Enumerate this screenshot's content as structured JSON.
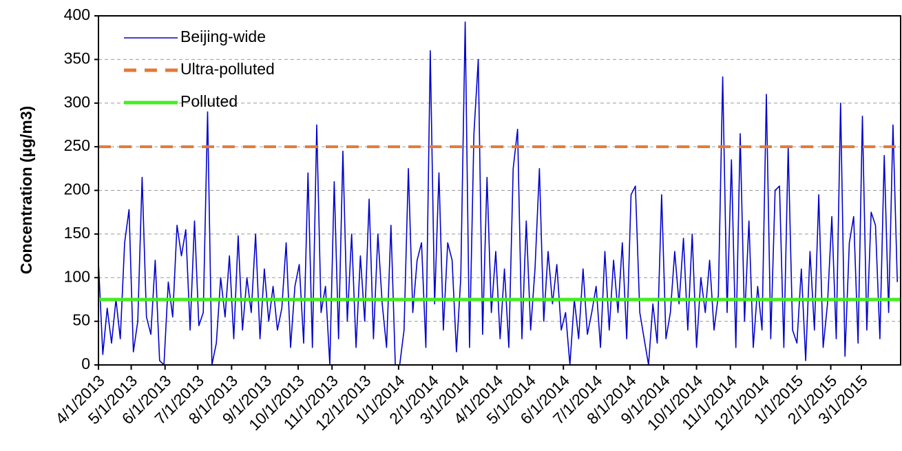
{
  "chart_data": {
    "type": "line",
    "y_label": "Concentration (µg/m3)",
    "x": [
      "4/1/2013",
      "4/5/2013",
      "4/9/2013",
      "4/13/2013",
      "4/17/2013",
      "4/21/2013",
      "4/25/2013",
      "4/29/2013",
      "5/3/2013",
      "5/7/2013",
      "5/11/2013",
      "5/15/2013",
      "5/19/2013",
      "5/23/2013",
      "5/27/2013",
      "5/31/2013",
      "6/4/2013",
      "6/8/2013",
      "6/12/2013",
      "6/16/2013",
      "6/20/2013",
      "6/24/2013",
      "6/28/2013",
      "7/2/2013",
      "7/6/2013",
      "7/10/2013",
      "7/14/2013",
      "7/18/2013",
      "7/22/2013",
      "7/26/2013",
      "7/30/2013",
      "8/3/2013",
      "8/7/2013",
      "8/11/2013",
      "8/15/2013",
      "8/19/2013",
      "8/23/2013",
      "8/27/2013",
      "8/31/2013",
      "9/4/2013",
      "9/8/2013",
      "9/12/2013",
      "9/16/2013",
      "9/20/2013",
      "9/24/2013",
      "9/28/2013",
      "10/2/2013",
      "10/6/2013",
      "10/10/2013",
      "10/14/2013",
      "10/18/2013",
      "10/22/2013",
      "10/26/2013",
      "10/30/2013",
      "11/3/2013",
      "11/7/2013",
      "11/11/2013",
      "11/15/2013",
      "11/19/2013",
      "11/23/2013",
      "11/27/2013",
      "12/1/2013",
      "12/5/2013",
      "12/9/2013",
      "12/13/2013",
      "12/17/2013",
      "12/21/2013",
      "12/25/2013",
      "12/29/2013",
      "1/2/2014",
      "1/6/2014",
      "1/10/2014",
      "1/14/2014",
      "1/18/2014",
      "1/22/2014",
      "1/26/2014",
      "1/30/2014",
      "2/3/2014",
      "2/7/2014",
      "2/11/2014",
      "2/15/2014",
      "2/19/2014",
      "2/23/2014",
      "2/27/2014",
      "3/3/2014",
      "3/7/2014",
      "3/11/2014",
      "3/15/2014",
      "3/19/2014",
      "3/23/2014",
      "3/27/2014",
      "3/31/2014",
      "4/4/2014",
      "4/8/2014",
      "4/12/2014",
      "4/16/2014",
      "4/20/2014",
      "4/24/2014",
      "4/28/2014",
      "5/2/2014",
      "5/6/2014",
      "5/10/2014",
      "5/14/2014",
      "5/18/2014",
      "5/22/2014",
      "5/26/2014",
      "5/30/2014",
      "6/3/2014",
      "6/7/2014",
      "6/11/2014",
      "6/15/2014",
      "6/19/2014",
      "6/23/2014",
      "6/27/2014",
      "7/1/2014",
      "7/5/2014",
      "7/9/2014",
      "7/13/2014",
      "7/17/2014",
      "7/21/2014",
      "7/25/2014",
      "7/29/2014",
      "8/2/2014",
      "8/6/2014",
      "8/10/2014",
      "8/14/2014",
      "8/18/2014",
      "8/22/2014",
      "8/26/2014",
      "8/30/2014",
      "9/3/2014",
      "9/7/2014",
      "9/11/2014",
      "9/15/2014",
      "9/19/2014",
      "9/23/2014",
      "9/27/2014",
      "10/1/2014",
      "10/5/2014",
      "10/9/2014",
      "10/13/2014",
      "10/17/2014",
      "10/21/2014",
      "10/25/2014",
      "10/29/2014",
      "11/2/2014",
      "11/6/2014",
      "11/10/2014",
      "11/14/2014",
      "11/18/2014",
      "11/22/2014",
      "11/26/2014",
      "11/30/2014",
      "12/4/2014",
      "12/8/2014",
      "12/12/2014",
      "12/16/2014",
      "12/20/2014",
      "12/24/2014",
      "12/28/2014",
      "1/1/2015",
      "1/5/2015",
      "1/9/2015",
      "1/13/2015",
      "1/17/2015",
      "1/21/2015",
      "1/25/2015",
      "1/29/2015",
      "2/2/2015",
      "2/6/2015",
      "2/10/2015",
      "2/14/2015",
      "2/18/2015",
      "2/22/2015",
      "2/26/2015",
      "3/2/2015",
      "3/6/2015",
      "3/10/2015",
      "3/14/2015",
      "3/18/2015",
      "3/22/2015",
      "3/26/2015",
      "3/30/2015",
      "4/3/2015"
    ],
    "series": [
      {
        "name": "Beijing-wide",
        "color": "#0000cc",
        "values": [
          118,
          12,
          65,
          25,
          75,
          30,
          140,
          178,
          15,
          50,
          215,
          55,
          35,
          120,
          5,
          0,
          95,
          55,
          160,
          125,
          155,
          40,
          165,
          45,
          60,
          290,
          0,
          25,
          100,
          55,
          125,
          30,
          148,
          40,
          100,
          60,
          150,
          30,
          110,
          50,
          90,
          40,
          65,
          140,
          20,
          90,
          115,
          25,
          220,
          20,
          275,
          60,
          90,
          0,
          210,
          30,
          245,
          50,
          150,
          20,
          125,
          50,
          190,
          30,
          150,
          70,
          20,
          160,
          0,
          0,
          40,
          225,
          60,
          120,
          140,
          20,
          360,
          70,
          220,
          40,
          140,
          120,
          15,
          100,
          393,
          20,
          265,
          350,
          35,
          215,
          60,
          130,
          30,
          110,
          20,
          225,
          270,
          30,
          165,
          40,
          110,
          225,
          50,
          130,
          70,
          115,
          40,
          60,
          0,
          75,
          30,
          110,
          35,
          60,
          90,
          20,
          130,
          40,
          120,
          60,
          140,
          30,
          195,
          205,
          60,
          30,
          0,
          70,
          25,
          195,
          30,
          60,
          130,
          70,
          145,
          40,
          150,
          20,
          100,
          60,
          120,
          40,
          80,
          330,
          60,
          235,
          20,
          265,
          50,
          165,
          20,
          90,
          40,
          310,
          30,
          200,
          205,
          20,
          250,
          40,
          25,
          110,
          5,
          130,
          40,
          195,
          20,
          70,
          170,
          30,
          300,
          10,
          140,
          170,
          25,
          285,
          40,
          175,
          160,
          30,
          240,
          60,
          275,
          95
        ]
      }
    ],
    "reference_lines": [
      {
        "name": "Ultra-polluted",
        "value": 250,
        "color": "#e07b39",
        "dashed": true
      },
      {
        "name": "Polluted",
        "value": 75,
        "color": "#44ee22",
        "dashed": false
      }
    ],
    "xlim": [
      "4/1/2013",
      "4/6/2015"
    ],
    "xticks": [
      "4/1/2013",
      "5/1/2013",
      "6/1/2013",
      "7/1/2013",
      "8/1/2013",
      "9/1/2013",
      "10/1/2013",
      "11/1/2013",
      "12/1/2013",
      "1/1/2014",
      "2/1/2014",
      "3/1/2014",
      "4/1/2014",
      "5/1/2014",
      "6/1/2014",
      "7/1/2014",
      "8/1/2014",
      "9/1/2014",
      "10/1/2014",
      "11/1/2014",
      "12/1/2014",
      "1/1/2015",
      "2/1/2015",
      "3/1/2015"
    ],
    "ylim": [
      0,
      400
    ],
    "yticks": [
      0,
      50,
      100,
      150,
      200,
      250,
      300,
      350,
      400
    ],
    "grid": true,
    "legend": "top-left"
  }
}
